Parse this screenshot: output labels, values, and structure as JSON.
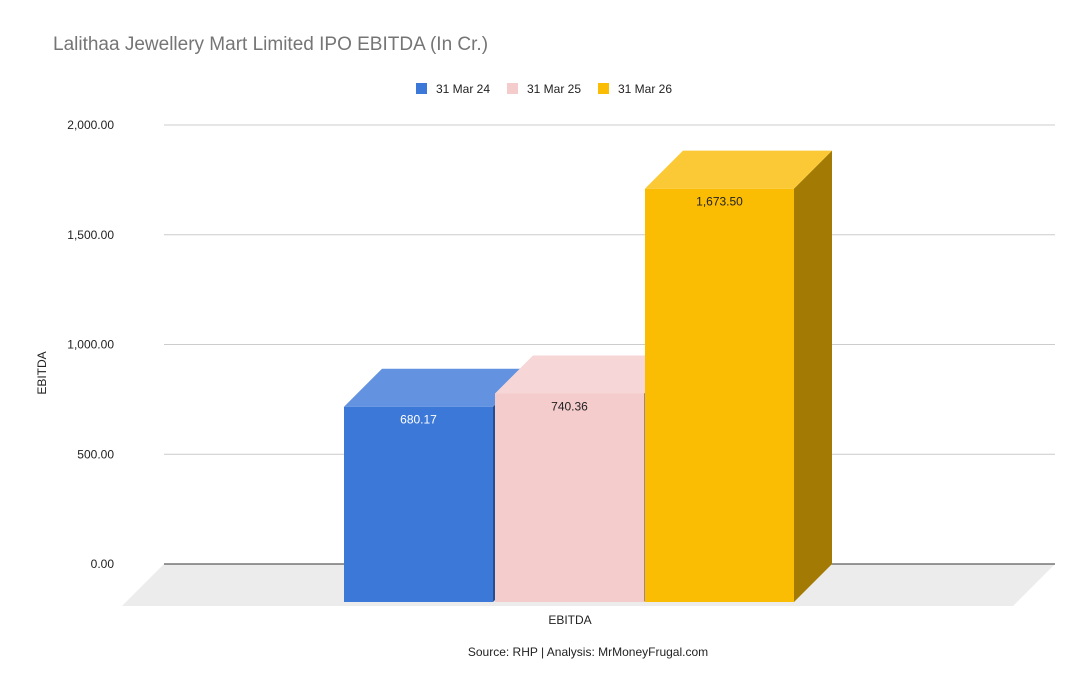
{
  "chart_data": {
    "type": "bar",
    "title": "Lalithaa Jewellery Mart Limited IPO EBITDA (In Cr.)",
    "categories": [
      "EBITDA"
    ],
    "series": [
      {
        "name": "31 Mar 24",
        "values": [
          680.17
        ],
        "label": "680.17",
        "color": "#3c78d8",
        "label_color": "#ffffff"
      },
      {
        "name": "31 Mar 25",
        "values": [
          740.36
        ],
        "label": "740.36",
        "color": "#f4cccc",
        "label_color": "#222222"
      },
      {
        "name": "31 Mar 26",
        "values": [
          1673.5
        ],
        "label": "1,673.50",
        "color": "#fbbc04",
        "label_color": "#222222"
      }
    ],
    "xlabel": "EBITDA",
    "ylabel": "EBITDA",
    "ylim": [
      0,
      2000
    ],
    "yticks": [
      0,
      500,
      1000,
      1500,
      2000
    ],
    "ytick_labels": [
      "0.00",
      "500.00",
      "1,000.00",
      "1,500.00",
      "2,000.00"
    ],
    "grid": true,
    "legend": "top"
  },
  "source_note": "Source: RHP | Analysis: MrMoneyFrugal.com"
}
